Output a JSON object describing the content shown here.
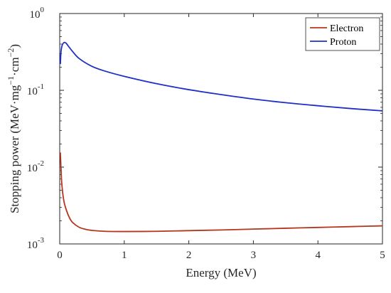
{
  "chart_data": {
    "type": "line",
    "title": "",
    "xlabel": "Energy (MeV)",
    "ylabel": {
      "prefix": "Stopping power (MeV",
      "mid1": "mg",
      "sup1": "−1",
      "mid2": "cm",
      "sup2": "−2",
      "suffix": ")"
    },
    "yscale": "log",
    "xlim": [
      0,
      5
    ],
    "ylim": [
      0.001,
      1
    ],
    "xticks": [
      0,
      1,
      2,
      3,
      4,
      5
    ],
    "yticks": [
      {
        "value": 1,
        "base": "10",
        "exp": "0"
      },
      {
        "value": 0.1,
        "base": "10",
        "exp": "-1"
      },
      {
        "value": 0.01,
        "base": "10",
        "exp": "-2"
      },
      {
        "value": 0.001,
        "base": "10",
        "exp": "-3"
      }
    ],
    "grid": false,
    "legend_position": "top-right",
    "series": [
      {
        "name": "Electron",
        "color": "#b5361d",
        "x": [
          0.01,
          0.03,
          0.06,
          0.1,
          0.15,
          0.2,
          0.3,
          0.4,
          0.5,
          0.7,
          1.0,
          1.5,
          2.0,
          2.5,
          3.0,
          3.5,
          4.0,
          4.5,
          5.0
        ],
        "y": [
          0.0155,
          0.0065,
          0.0038,
          0.0028,
          0.0022,
          0.0019,
          0.00165,
          0.00155,
          0.0015,
          0.00146,
          0.00145,
          0.00146,
          0.00149,
          0.00152,
          0.00156,
          0.0016,
          0.00164,
          0.00168,
          0.00172
        ]
      },
      {
        "name": "Proton",
        "color": "#1f2fc4",
        "x": [
          0.01,
          0.02,
          0.04,
          0.07,
          0.1,
          0.13,
          0.2,
          0.3,
          0.5,
          0.7,
          1.0,
          1.5,
          2.0,
          2.5,
          3.0,
          3.5,
          4.0,
          4.5,
          5.0
        ],
        "y": [
          0.22,
          0.32,
          0.39,
          0.42,
          0.41,
          0.38,
          0.32,
          0.26,
          0.205,
          0.178,
          0.152,
          0.122,
          0.102,
          0.088,
          0.077,
          0.069,
          0.063,
          0.058,
          0.054
        ]
      }
    ]
  }
}
